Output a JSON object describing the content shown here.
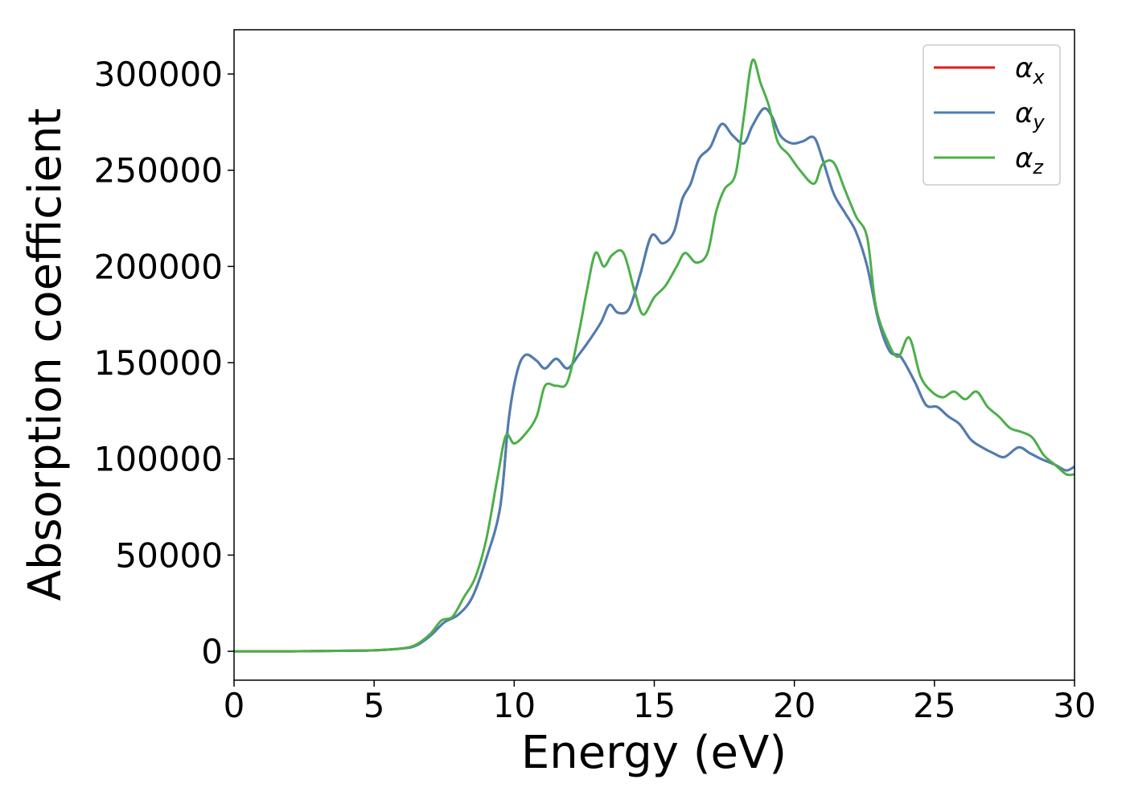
{
  "chart_data": {
    "type": "line",
    "xlabel": "Energy (eV)",
    "ylabel": "Absorption coefficient",
    "xlim": [
      0,
      30
    ],
    "ylim": [
      -15000,
      323000
    ],
    "xticks": [
      0,
      5,
      10,
      15,
      20,
      25,
      30
    ],
    "xtick_labels": [
      "0",
      "5",
      "10",
      "15",
      "20",
      "25",
      "30"
    ],
    "yticks": [
      0,
      50000,
      100000,
      150000,
      200000,
      250000,
      300000
    ],
    "ytick_labels": [
      "0",
      "50000",
      "100000",
      "150000",
      "200000",
      "250000",
      "300000"
    ],
    "grid": false,
    "legend_position": "top-right",
    "series": [
      {
        "name": "α",
        "subscript": "x",
        "color": "#e41a1c",
        "points": [
          [
            0,
            0
          ],
          [
            2,
            0
          ],
          [
            4,
            300
          ],
          [
            5,
            500
          ],
          [
            6,
            1500
          ],
          [
            6.5,
            3000
          ],
          [
            7,
            8000
          ],
          [
            7.5,
            15000
          ],
          [
            8,
            19000
          ],
          [
            8.5,
            28000
          ],
          [
            9,
            48000
          ],
          [
            9.5,
            75000
          ],
          [
            9.8,
            120000
          ],
          [
            10.1,
            145000
          ],
          [
            10.4,
            154000
          ],
          [
            10.8,
            151000
          ],
          [
            11.1,
            147000
          ],
          [
            11.5,
            152000
          ],
          [
            11.9,
            147000
          ],
          [
            12.3,
            154000
          ],
          [
            12.7,
            162000
          ],
          [
            13.1,
            171000
          ],
          [
            13.4,
            180000
          ],
          [
            13.7,
            176000
          ],
          [
            14.1,
            178000
          ],
          [
            14.5,
            196000
          ],
          [
            14.9,
            216000
          ],
          [
            15.3,
            212000
          ],
          [
            15.7,
            218000
          ],
          [
            16.0,
            235000
          ],
          [
            16.3,
            243000
          ],
          [
            16.6,
            256000
          ],
          [
            17.0,
            262000
          ],
          [
            17.4,
            274000
          ],
          [
            17.8,
            268000
          ],
          [
            18.2,
            264000
          ],
          [
            18.5,
            273000
          ],
          [
            18.9,
            282000
          ],
          [
            19.2,
            278000
          ],
          [
            19.5,
            268000
          ],
          [
            19.9,
            264000
          ],
          [
            20.3,
            265000
          ],
          [
            20.7,
            267000
          ],
          [
            21.0,
            256000
          ],
          [
            21.4,
            238000
          ],
          [
            21.8,
            228000
          ],
          [
            22.2,
            218000
          ],
          [
            22.6,
            200000
          ],
          [
            23.0,
            172000
          ],
          [
            23.4,
            156000
          ],
          [
            23.8,
            153000
          ],
          [
            24.3,
            140000
          ],
          [
            24.7,
            128000
          ],
          [
            25.1,
            127000
          ],
          [
            25.5,
            122000
          ],
          [
            25.9,
            118000
          ],
          [
            26.3,
            110000
          ],
          [
            26.7,
            106000
          ],
          [
            27.1,
            103000
          ],
          [
            27.5,
            101000
          ],
          [
            28.0,
            106000
          ],
          [
            28.4,
            103000
          ],
          [
            28.8,
            100000
          ],
          [
            29.3,
            97000
          ],
          [
            29.7,
            94000
          ],
          [
            30.0,
            96000
          ]
        ]
      },
      {
        "name": "α",
        "subscript": "y",
        "color": "#4a7fb5",
        "points": [
          [
            0,
            0
          ],
          [
            2,
            0
          ],
          [
            4,
            300
          ],
          [
            5,
            500
          ],
          [
            6,
            1500
          ],
          [
            6.5,
            3000
          ],
          [
            7,
            8000
          ],
          [
            7.5,
            15000
          ],
          [
            8,
            19000
          ],
          [
            8.5,
            28000
          ],
          [
            9,
            48000
          ],
          [
            9.5,
            75000
          ],
          [
            9.8,
            120000
          ],
          [
            10.1,
            145000
          ],
          [
            10.4,
            154000
          ],
          [
            10.8,
            151000
          ],
          [
            11.1,
            147000
          ],
          [
            11.5,
            152000
          ],
          [
            11.9,
            147000
          ],
          [
            12.3,
            154000
          ],
          [
            12.7,
            162000
          ],
          [
            13.1,
            171000
          ],
          [
            13.4,
            180000
          ],
          [
            13.7,
            176000
          ],
          [
            14.1,
            178000
          ],
          [
            14.5,
            196000
          ],
          [
            14.9,
            216000
          ],
          [
            15.3,
            212000
          ],
          [
            15.7,
            218000
          ],
          [
            16.0,
            235000
          ],
          [
            16.3,
            243000
          ],
          [
            16.6,
            256000
          ],
          [
            17.0,
            262000
          ],
          [
            17.4,
            274000
          ],
          [
            17.8,
            268000
          ],
          [
            18.2,
            264000
          ],
          [
            18.5,
            273000
          ],
          [
            18.9,
            282000
          ],
          [
            19.2,
            278000
          ],
          [
            19.5,
            268000
          ],
          [
            19.9,
            264000
          ],
          [
            20.3,
            265000
          ],
          [
            20.7,
            267000
          ],
          [
            21.0,
            256000
          ],
          [
            21.4,
            238000
          ],
          [
            21.8,
            228000
          ],
          [
            22.2,
            218000
          ],
          [
            22.6,
            200000
          ],
          [
            23.0,
            172000
          ],
          [
            23.4,
            156000
          ],
          [
            23.8,
            153000
          ],
          [
            24.3,
            140000
          ],
          [
            24.7,
            128000
          ],
          [
            25.1,
            127000
          ],
          [
            25.5,
            122000
          ],
          [
            25.9,
            118000
          ],
          [
            26.3,
            110000
          ],
          [
            26.7,
            106000
          ],
          [
            27.1,
            103000
          ],
          [
            27.5,
            101000
          ],
          [
            28.0,
            106000
          ],
          [
            28.4,
            103000
          ],
          [
            28.8,
            100000
          ],
          [
            29.3,
            97000
          ],
          [
            29.7,
            94000
          ],
          [
            30.0,
            96000
          ]
        ]
      },
      {
        "name": "α",
        "subscript": "z",
        "color": "#4daf4a",
        "points": [
          [
            0,
            0
          ],
          [
            2,
            0
          ],
          [
            4,
            300
          ],
          [
            5,
            500
          ],
          [
            6,
            1500
          ],
          [
            6.5,
            3500
          ],
          [
            7,
            9000
          ],
          [
            7.4,
            16000
          ],
          [
            7.8,
            18000
          ],
          [
            8.2,
            28000
          ],
          [
            8.6,
            38000
          ],
          [
            9.0,
            58000
          ],
          [
            9.4,
            90000
          ],
          [
            9.7,
            112000
          ],
          [
            10.0,
            108000
          ],
          [
            10.4,
            113000
          ],
          [
            10.8,
            122000
          ],
          [
            11.1,
            138000
          ],
          [
            11.5,
            138000
          ],
          [
            11.9,
            140000
          ],
          [
            12.3,
            165000
          ],
          [
            12.6,
            188000
          ],
          [
            12.9,
            207000
          ],
          [
            13.2,
            200000
          ],
          [
            13.5,
            206000
          ],
          [
            13.9,
            207000
          ],
          [
            14.3,
            187000
          ],
          [
            14.6,
            175000
          ],
          [
            15.0,
            184000
          ],
          [
            15.4,
            190000
          ],
          [
            15.8,
            200000
          ],
          [
            16.1,
            207000
          ],
          [
            16.5,
            202000
          ],
          [
            16.9,
            207000
          ],
          [
            17.2,
            228000
          ],
          [
            17.5,
            240000
          ],
          [
            17.9,
            248000
          ],
          [
            18.2,
            278000
          ],
          [
            18.5,
            307000
          ],
          [
            18.8,
            295000
          ],
          [
            19.1,
            283000
          ],
          [
            19.4,
            265000
          ],
          [
            19.8,
            258000
          ],
          [
            20.2,
            250000
          ],
          [
            20.7,
            243000
          ],
          [
            21.0,
            253000
          ],
          [
            21.4,
            254000
          ],
          [
            21.8,
            240000
          ],
          [
            22.2,
            226000
          ],
          [
            22.6,
            215000
          ],
          [
            22.9,
            180000
          ],
          [
            23.3,
            162000
          ],
          [
            23.7,
            153000
          ],
          [
            24.1,
            163000
          ],
          [
            24.5,
            143000
          ],
          [
            24.9,
            135000
          ],
          [
            25.3,
            132000
          ],
          [
            25.7,
            135000
          ],
          [
            26.1,
            131000
          ],
          [
            26.5,
            135000
          ],
          [
            26.9,
            127000
          ],
          [
            27.3,
            122000
          ],
          [
            27.7,
            116000
          ],
          [
            28.1,
            114000
          ],
          [
            28.5,
            111000
          ],
          [
            28.9,
            102000
          ],
          [
            29.3,
            97000
          ],
          [
            29.7,
            92000
          ],
          [
            30.0,
            92000
          ]
        ]
      }
    ]
  }
}
